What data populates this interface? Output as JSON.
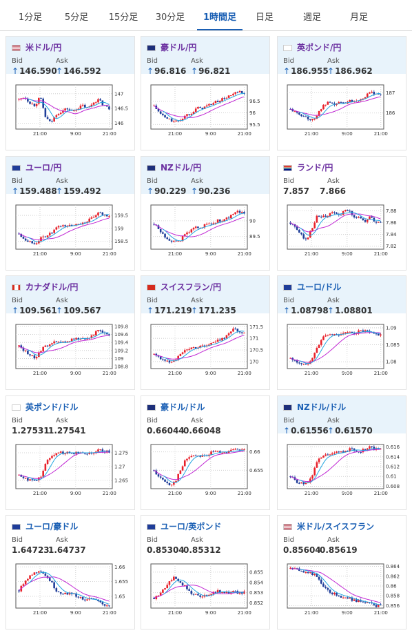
{
  "tabs": [
    {
      "label": "1分足",
      "active": false
    },
    {
      "label": "5分足",
      "active": false
    },
    {
      "label": "15分足",
      "active": false
    },
    {
      "label": "30分足",
      "active": false
    },
    {
      "label": "1時間足",
      "active": true
    },
    {
      "label": "日足",
      "active": false
    },
    {
      "label": "週足",
      "active": false
    },
    {
      "label": "月足",
      "active": false
    }
  ],
  "labels": {
    "bid": "Bid",
    "ask": "Ask",
    "arrow": "↑"
  },
  "colors": {
    "up": "#e8202a",
    "down": "#1f3d99",
    "pairLink": "#6b2fa0",
    "pairBlue": "#1a5fb4",
    "highlight": "#e8f3fb"
  },
  "cards": [
    {
      "pair": "米ドル/円",
      "flag": "us-flag",
      "color": "pairLink",
      "hl": true,
      "arrowBid": true,
      "arrowAsk": true,
      "bid": "146.590",
      "ask": "146.592",
      "chart_data": {
        "type": "candlestick",
        "x_ticks": [
          "21:00",
          "9:00",
          "21:00"
        ],
        "y_ticks": [
          "147",
          "146.5",
          "146"
        ],
        "ylim": [
          145.8,
          147.3
        ],
        "trend": [
          146.8,
          146.9,
          146.7,
          146.6,
          146.9,
          146.2,
          146.0,
          146.3,
          146.4,
          146.5,
          146.4,
          146.5,
          146.6,
          146.5,
          146.7,
          146.8,
          146.6,
          146.5
        ]
      }
    },
    {
      "pair": "豪ドル/円",
      "flag": "au-flag",
      "color": "pairLink",
      "hl": true,
      "arrowBid": true,
      "arrowAsk": true,
      "bid": "96.816",
      "ask": "96.821",
      "chart_data": {
        "type": "candlestick",
        "x_ticks": [
          "21:00",
          "9:00",
          "21:00"
        ],
        "y_ticks": [
          "96.5",
          "96",
          "95.5"
        ],
        "ylim": [
          95.3,
          97.2
        ],
        "trend": [
          96.3,
          96.0,
          95.8,
          95.7,
          95.6,
          95.7,
          95.9,
          96.0,
          96.2,
          96.2,
          96.3,
          96.4,
          96.5,
          96.6,
          96.7,
          96.8,
          96.9,
          96.8
        ]
      }
    },
    {
      "pair": "英ポンド/円",
      "flag": "gb-flag",
      "color": "pairLink",
      "hl": true,
      "arrowBid": true,
      "arrowAsk": true,
      "bid": "186.955",
      "ask": "186.962",
      "chart_data": {
        "type": "candlestick",
        "x_ticks": [
          "21:00",
          "9:00",
          "21:00"
        ],
        "y_ticks": [
          "187",
          "186"
        ],
        "ylim": [
          185.2,
          187.4
        ],
        "trend": [
          186.2,
          186.0,
          185.9,
          185.8,
          185.6,
          185.9,
          186.3,
          186.5,
          186.4,
          186.5,
          186.5,
          186.6,
          186.6,
          186.7,
          186.8,
          187.0,
          187.0,
          186.9
        ]
      }
    },
    {
      "pair": "ユーロ/円",
      "flag": "eu-flag",
      "color": "pairLink",
      "hl": true,
      "arrowBid": true,
      "arrowAsk": true,
      "bid": "159.488",
      "ask": "159.492",
      "chart_data": {
        "type": "candlestick",
        "x_ticks": [
          "21:00",
          "9:00",
          "21:00"
        ],
        "y_ticks": [
          "159.5",
          "159",
          "158.5"
        ],
        "ylim": [
          158.2,
          159.9
        ],
        "trend": [
          158.8,
          158.6,
          158.5,
          158.4,
          158.6,
          158.7,
          158.8,
          159.0,
          159.1,
          159.1,
          159.1,
          159.2,
          159.2,
          159.3,
          159.4,
          159.6,
          159.5,
          159.5
        ]
      }
    },
    {
      "pair": "NZドル/円",
      "flag": "nz-flag",
      "color": "pairLink",
      "hl": true,
      "arrowBid": true,
      "arrowAsk": true,
      "bid": "90.229",
      "ask": "90.236",
      "chart_data": {
        "type": "candlestick",
        "x_ticks": [
          "21:00",
          "9:00",
          "21:00"
        ],
        "y_ticks": [
          "90",
          "89.5"
        ],
        "ylim": [
          89.1,
          90.5
        ],
        "trend": [
          89.9,
          89.7,
          89.5,
          89.4,
          89.3,
          89.4,
          89.6,
          89.7,
          89.8,
          89.8,
          89.9,
          89.9,
          90.0,
          90.0,
          90.1,
          90.2,
          90.3,
          90.2
        ]
      }
    },
    {
      "pair": "ランド/円",
      "flag": "za-flag",
      "color": "pairLink",
      "hl": false,
      "arrowBid": false,
      "arrowAsk": false,
      "bid": "7.857",
      "ask": "7.866",
      "chart_data": {
        "type": "candlestick",
        "x_ticks": [
          "21:00",
          "9:00",
          "21:00"
        ],
        "y_ticks": [
          "7.88",
          "7.86",
          "7.84",
          "7.82"
        ],
        "ylim": [
          7.815,
          7.89
        ],
        "trend": [
          7.86,
          7.85,
          7.84,
          7.83,
          7.85,
          7.87,
          7.87,
          7.87,
          7.88,
          7.87,
          7.88,
          7.88,
          7.87,
          7.87,
          7.86,
          7.87,
          7.86,
          7.86
        ]
      }
    },
    {
      "pair": "カナダドル/円",
      "flag": "ca-flag",
      "color": "pairLink",
      "hl": true,
      "arrowBid": true,
      "arrowAsk": true,
      "bid": "109.561",
      "ask": "109.567",
      "chart_data": {
        "type": "candlestick",
        "x_ticks": [
          "21:00",
          "9:00",
          "21:00"
        ],
        "y_ticks": [
          "109.8",
          "109.6",
          "109.4",
          "109.2",
          "109",
          "108.8"
        ],
        "ylim": [
          108.75,
          109.85
        ],
        "trend": [
          109.3,
          109.2,
          109.1,
          109.0,
          109.2,
          109.3,
          109.4,
          109.4,
          109.4,
          109.4,
          109.5,
          109.5,
          109.5,
          109.5,
          109.6,
          109.7,
          109.6,
          109.6
        ]
      }
    },
    {
      "pair": "スイスフラン/円",
      "flag": "ch-flag",
      "color": "pairLink",
      "hl": true,
      "arrowBid": true,
      "arrowAsk": true,
      "bid": "171.219",
      "ask": "171.235",
      "chart_data": {
        "type": "candlestick",
        "x_ticks": [
          "21:00",
          "9:00",
          "21:00"
        ],
        "y_ticks": [
          "171.5",
          "171",
          "170.5",
          "170"
        ],
        "ylim": [
          169.7,
          171.6
        ],
        "trend": [
          170.3,
          170.2,
          170.0,
          170.0,
          170.1,
          170.3,
          170.5,
          170.6,
          170.6,
          170.7,
          170.7,
          170.8,
          170.9,
          171.0,
          171.2,
          171.4,
          171.3,
          171.2
        ]
      }
    },
    {
      "pair": "ユーロ/ドル",
      "flag": "eu-us-flag",
      "color": "pairBlue",
      "hl": true,
      "arrowBid": true,
      "arrowAsk": true,
      "bid": "1.08798",
      "ask": "1.08801",
      "chart_data": {
        "type": "candlestick",
        "x_ticks": [
          "21:00",
          "9:00",
          "21:00"
        ],
        "y_ticks": [
          "1.09",
          "1.085",
          "1.08"
        ],
        "ylim": [
          1.078,
          1.091
        ],
        "trend": [
          1.081,
          1.08,
          1.0795,
          1.079,
          1.081,
          1.084,
          1.087,
          1.088,
          1.088,
          1.088,
          1.0885,
          1.0885,
          1.0885,
          1.089,
          1.089,
          1.0885,
          1.088,
          1.088
        ]
      }
    },
    {
      "pair": "英ポンド/ドル",
      "flag": "gb-us-flag",
      "color": "pairBlue",
      "hl": false,
      "arrowBid": false,
      "arrowAsk": false,
      "bid": "1.27531",
      "ask": "1.27541",
      "chart_data": {
        "type": "candlestick",
        "x_ticks": [
          "21:00",
          "9:00",
          "21:00"
        ],
        "y_ticks": [
          "1.275",
          "1.27",
          "1.265"
        ],
        "ylim": [
          1.262,
          1.278
        ],
        "trend": [
          1.267,
          1.266,
          1.265,
          1.265,
          1.266,
          1.271,
          1.274,
          1.275,
          1.275,
          1.275,
          1.275,
          1.275,
          1.275,
          1.275,
          1.275,
          1.276,
          1.2755,
          1.2753
        ]
      }
    },
    {
      "pair": "豪ドル/ドル",
      "flag": "au-us-flag",
      "color": "pairBlue",
      "hl": false,
      "arrowBid": false,
      "arrowAsk": false,
      "bid": "0.66044",
      "ask": "0.66048",
      "chart_data": {
        "type": "candlestick",
        "x_ticks": [
          "21:00",
          "9:00",
          "21:00"
        ],
        "y_ticks": [
          "0.66",
          "0.655"
        ],
        "ylim": [
          0.65,
          0.662
        ],
        "trend": [
          0.655,
          0.653,
          0.652,
          0.651,
          0.652,
          0.655,
          0.658,
          0.659,
          0.659,
          0.659,
          0.659,
          0.66,
          0.66,
          0.66,
          0.66,
          0.6605,
          0.6605,
          0.6604
        ]
      }
    },
    {
      "pair": "NZドル/ドル",
      "flag": "nz-us-flag",
      "color": "pairBlue",
      "hl": true,
      "arrowBid": true,
      "arrowAsk": true,
      "bid": "0.61556",
      "ask": "0.61570",
      "chart_data": {
        "type": "candlestick",
        "x_ticks": [
          "21:00",
          "9:00",
          "21:00"
        ],
        "y_ticks": [
          "0.616",
          "0.614",
          "0.612",
          "0.61",
          "0.608"
        ],
        "ylim": [
          0.6075,
          0.6165
        ],
        "trend": [
          0.61,
          0.609,
          0.6085,
          0.6085,
          0.61,
          0.613,
          0.614,
          0.6145,
          0.6145,
          0.615,
          0.615,
          0.6155,
          0.6155,
          0.615,
          0.6155,
          0.616,
          0.6155,
          0.6156
        ]
      }
    },
    {
      "pair": "ユーロ/豪ドル",
      "flag": "eu-au-flag",
      "color": "pairBlue",
      "hl": false,
      "arrowBid": false,
      "arrowAsk": false,
      "bid": "1.64723",
      "ask": "1.64737",
      "chart_data": {
        "type": "candlestick",
        "x_ticks": [
          "21:00",
          "9:00",
          "21:00"
        ],
        "y_ticks": [
          "1.66",
          "1.655",
          "1.65"
        ],
        "ylim": [
          1.646,
          1.661
        ],
        "trend": [
          1.652,
          1.655,
          1.657,
          1.658,
          1.659,
          1.657,
          1.655,
          1.652,
          1.651,
          1.651,
          1.651,
          1.65,
          1.649,
          1.649,
          1.649,
          1.648,
          1.647,
          1.647
        ]
      }
    },
    {
      "pair": "ユーロ/英ポンド",
      "flag": "eu-gb-flag",
      "color": "pairBlue",
      "hl": false,
      "arrowBid": false,
      "arrowAsk": false,
      "bid": "0.85304",
      "ask": "0.85312",
      "chart_data": {
        "type": "candlestick",
        "x_ticks": [
          "21:00",
          "9:00",
          "21:00"
        ],
        "y_ticks": [
          "0.855",
          "0.854",
          "0.853",
          "0.852"
        ],
        "ylim": [
          0.8515,
          0.8558
        ],
        "trend": [
          0.8525,
          0.8528,
          0.8535,
          0.8542,
          0.8545,
          0.854,
          0.8535,
          0.853,
          0.8528,
          0.8525,
          0.8528,
          0.853,
          0.8532,
          0.853,
          0.853,
          0.8531,
          0.853,
          0.853
        ]
      }
    },
    {
      "pair": "米ドル/スイスフラン",
      "flag": "us-ch-flag",
      "color": "pairBlue",
      "hl": false,
      "arrowBid": false,
      "arrowAsk": false,
      "bid": "0.85604",
      "ask": "0.85619",
      "chart_data": {
        "type": "candlestick",
        "x_ticks": [
          "21:00",
          "9:00",
          "21:00"
        ],
        "y_ticks": [
          "0.864",
          "0.862",
          "0.86",
          "0.858",
          "0.856"
        ],
        "ylim": [
          0.8555,
          0.8645
        ],
        "trend": [
          0.8635,
          0.8635,
          0.863,
          0.863,
          0.8625,
          0.862,
          0.86,
          0.859,
          0.8585,
          0.858,
          0.8578,
          0.8575,
          0.857,
          0.857,
          0.8565,
          0.8565,
          0.856,
          0.856
        ]
      }
    }
  ]
}
